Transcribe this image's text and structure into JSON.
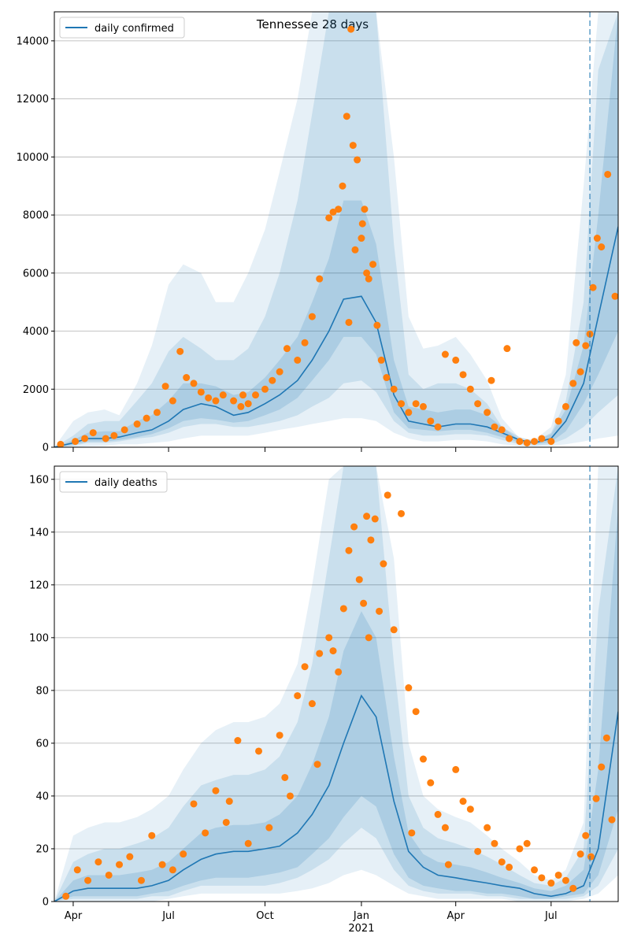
{
  "colors": {
    "line": "#1f77b4",
    "band": "#1f77b4",
    "points": "#ff7f0e",
    "grid": "#b0b0b0",
    "axis": "#000000"
  },
  "chart_data": [
    {
      "type": "line",
      "title": "Tennessee 28 days",
      "legend": "daily confirmed",
      "legend_position": "top-left",
      "grid": "horizontal",
      "ylim": [
        0,
        15000
      ],
      "yticks": [
        0,
        2000,
        4000,
        6000,
        8000,
        10000,
        12000,
        14000
      ],
      "xlim": [
        "2020-03-14",
        "2021-09-03"
      ],
      "forecast_start": "2021-08-07",
      "line_series": {
        "name": "daily confirmed",
        "x": [
          "2020-03-14",
          "2020-04-01",
          "2020-04-15",
          "2020-05-01",
          "2020-05-15",
          "2020-06-01",
          "2020-06-15",
          "2020-07-01",
          "2020-07-15",
          "2020-08-01",
          "2020-08-15",
          "2020-09-01",
          "2020-09-15",
          "2020-10-01",
          "2020-10-15",
          "2020-11-01",
          "2020-11-15",
          "2020-12-01",
          "2020-12-15",
          "2021-01-01",
          "2021-01-15",
          "2021-02-01",
          "2021-02-15",
          "2021-03-01",
          "2021-03-15",
          "2021-04-01",
          "2021-04-15",
          "2021-05-01",
          "2021-05-15",
          "2021-06-01",
          "2021-06-15",
          "2021-07-01",
          "2021-07-15",
          "2021-08-01",
          "2021-08-15",
          "2021-09-03"
        ],
        "values": [
          0,
          150,
          300,
          300,
          350,
          500,
          600,
          900,
          1300,
          1500,
          1400,
          1100,
          1200,
          1500,
          1800,
          2300,
          3000,
          4000,
          5100,
          5200,
          4300,
          1800,
          900,
          800,
          700,
          800,
          800,
          700,
          500,
          250,
          150,
          300,
          900,
          2200,
          4500,
          7600
        ]
      },
      "bands": [
        {
          "upper": [
            0,
            900,
            1200,
            1300,
            1100,
            2200,
            3500,
            5600,
            6300,
            6000,
            5000,
            5000,
            6000,
            7500,
            9500,
            12000,
            15000,
            15000,
            15000,
            15000,
            15000,
            10000,
            4500,
            3400,
            3500,
            3800,
            3200,
            2300,
            1000,
            300,
            250,
            700,
            2500,
            9000,
            15000,
            15000
          ],
          "lower": [
            0,
            10,
            30,
            50,
            100,
            100,
            150,
            200,
            300,
            400,
            400,
            400,
            400,
            500,
            600,
            700,
            800,
            900,
            1000,
            1000,
            900,
            500,
            300,
            200,
            200,
            250,
            250,
            200,
            100,
            40,
            30,
            50,
            100,
            200,
            300,
            400
          ]
        },
        {
          "upper": [
            0,
            400,
            800,
            900,
            900,
            1600,
            2200,
            3300,
            3800,
            3400,
            3000,
            3000,
            3400,
            4500,
            6000,
            8500,
            11500,
            15000,
            15000,
            15000,
            15000,
            7000,
            2500,
            2000,
            2200,
            2200,
            2000,
            1500,
            700,
            250,
            200,
            500,
            1600,
            5000,
            13000,
            15000
          ],
          "lower": [
            0,
            50,
            150,
            150,
            200,
            300,
            350,
            500,
            700,
            800,
            800,
            700,
            700,
            800,
            900,
            1100,
            1400,
            1700,
            2200,
            2300,
            1900,
            900,
            500,
            400,
            400,
            450,
            450,
            400,
            250,
            100,
            60,
            100,
            300,
            700,
            1200,
            1800
          ]
        },
        {
          "upper": [
            0,
            250,
            500,
            550,
            550,
            900,
            1100,
            1600,
            2200,
            2200,
            2100,
            1800,
            1900,
            2400,
            3000,
            3800,
            5000,
            6500,
            8500,
            8500,
            7000,
            3000,
            1400,
            1300,
            1200,
            1300,
            1300,
            1100,
            700,
            350,
            220,
            450,
            1300,
            3500,
            8000,
            15000
          ],
          "lower": [
            0,
            80,
            200,
            200,
            250,
            350,
            450,
            650,
            900,
            1000,
            950,
            850,
            900,
            1100,
            1300,
            1700,
            2300,
            3000,
            3800,
            3800,
            3200,
            1200,
            650,
            600,
            550,
            600,
            600,
            500,
            350,
            160,
            100,
            180,
            550,
            1500,
            2500,
            4000
          ]
        }
      ],
      "scatter_series": {
        "name": "observed",
        "x": [
          "2020-03-20",
          "2020-04-03",
          "2020-04-12",
          "2020-04-20",
          "2020-05-02",
          "2020-05-10",
          "2020-05-20",
          "2020-06-01",
          "2020-06-10",
          "2020-06-20",
          "2020-06-28",
          "2020-07-05",
          "2020-07-12",
          "2020-07-18",
          "2020-07-25",
          "2020-08-01",
          "2020-08-08",
          "2020-08-15",
          "2020-08-22",
          "2020-09-01",
          "2020-09-08",
          "2020-09-15",
          "2020-09-22",
          "2020-10-01",
          "2020-10-08",
          "2020-10-15",
          "2020-10-22",
          "2020-11-01",
          "2020-11-08",
          "2020-11-15",
          "2020-11-22",
          "2020-12-01",
          "2020-12-05",
          "2020-12-10",
          "2020-12-14",
          "2020-12-18",
          "2020-12-22",
          "2020-12-24",
          "2020-12-28",
          "2021-01-01",
          "2021-01-04",
          "2021-01-08",
          "2021-01-12",
          "2021-01-16",
          "2021-01-20",
          "2021-01-25",
          "2021-02-01",
          "2021-02-08",
          "2021-02-15",
          "2021-02-22",
          "2021-03-01",
          "2021-03-08",
          "2021-03-15",
          "2021-03-22",
          "2021-04-01",
          "2021-04-08",
          "2021-04-15",
          "2021-04-22",
          "2021-05-01",
          "2021-05-08",
          "2021-05-15",
          "2021-05-22",
          "2021-06-01",
          "2021-06-08",
          "2021-06-15",
          "2021-06-22",
          "2021-07-01",
          "2021-07-08",
          "2021-07-15",
          "2021-07-22",
          "2021-07-29",
          "2021-08-03",
          "2021-08-07",
          "2021-08-10",
          "2021-08-14",
          "2021-08-18",
          "2021-08-24",
          "2021-08-31",
          "2020-12-20",
          "2020-12-26",
          "2021-01-02",
          "2021-01-06",
          "2021-05-05",
          "2021-05-20",
          "2021-07-25",
          "2020-09-10"
        ],
        "values": [
          100,
          200,
          300,
          500,
          300,
          400,
          600,
          800,
          1000,
          1200,
          2100,
          1600,
          3300,
          2400,
          2200,
          1900,
          1700,
          1600,
          1800,
          1600,
          1400,
          1500,
          1800,
          2000,
          2300,
          2600,
          3400,
          3000,
          3600,
          4500,
          5800,
          7900,
          8100,
          8200,
          9000,
          11400,
          14400,
          10400,
          9900,
          7200,
          8200,
          5800,
          6300,
          4200,
          3000,
          2400,
          2000,
          1500,
          1200,
          1500,
          1400,
          900,
          700,
          3200,
          3000,
          2500,
          2000,
          1500,
          1200,
          700,
          600,
          300,
          200,
          150,
          200,
          300,
          200,
          900,
          1400,
          2200,
          2600,
          3500,
          3900,
          5500,
          7200,
          6900,
          9400,
          5200,
          4300,
          6800,
          7700,
          6000,
          2300,
          3400,
          3600,
          1800
        ],
        "also_zero_points": true
      }
    },
    {
      "type": "line",
      "legend": "daily deaths",
      "legend_position": "top-left",
      "grid": "horizontal",
      "ylim": [
        0,
        165
      ],
      "yticks": [
        0,
        20,
        40,
        60,
        80,
        100,
        120,
        140,
        160
      ],
      "xlim": [
        "2020-03-14",
        "2021-09-03"
      ],
      "xticks": [
        "Apr",
        "Jul",
        "Oct",
        "Jan",
        "Apr",
        "Jul"
      ],
      "xtick_dates": [
        "2020-04-01",
        "2020-07-01",
        "2020-10-01",
        "2021-01-01",
        "2021-04-01",
        "2021-07-01"
      ],
      "year_label": "2021",
      "forecast_start": "2021-08-07",
      "line_series": {
        "name": "daily deaths",
        "x": [
          "2020-03-14",
          "2020-04-01",
          "2020-04-15",
          "2020-05-01",
          "2020-05-15",
          "2020-06-01",
          "2020-06-15",
          "2020-07-01",
          "2020-07-15",
          "2020-08-01",
          "2020-08-15",
          "2020-09-01",
          "2020-09-15",
          "2020-10-01",
          "2020-10-15",
          "2020-11-01",
          "2020-11-15",
          "2020-12-01",
          "2020-12-15",
          "2021-01-01",
          "2021-01-15",
          "2021-02-01",
          "2021-02-15",
          "2021-03-01",
          "2021-03-15",
          "2021-04-01",
          "2021-04-15",
          "2021-05-01",
          "2021-05-15",
          "2021-06-01",
          "2021-06-15",
          "2021-07-01",
          "2021-07-15",
          "2021-08-01",
          "2021-08-15",
          "2021-09-03"
        ],
        "values": [
          0,
          4,
          5,
          5,
          5,
          5,
          6,
          8,
          12,
          16,
          18,
          19,
          19,
          20,
          21,
          26,
          33,
          44,
          60,
          78,
          70,
          38,
          19,
          13,
          10,
          9,
          8,
          7,
          6,
          5,
          3,
          2,
          3,
          6,
          20,
          72
        ]
      },
      "bands": [
        {
          "upper": [
            0,
            25,
            28,
            30,
            30,
            32,
            35,
            40,
            50,
            60,
            65,
            68,
            68,
            70,
            75,
            90,
            120,
            160,
            165,
            165,
            165,
            130,
            60,
            40,
            35,
            32,
            30,
            25,
            20,
            15,
            10,
            8,
            12,
            30,
            165,
            165
          ],
          "lower": [
            0,
            0,
            0,
            0,
            0,
            0,
            0,
            1,
            2,
            3,
            3,
            3,
            3,
            3,
            3,
            4,
            5,
            7,
            10,
            12,
            10,
            6,
            3,
            2,
            1,
            1,
            1,
            1,
            1,
            0,
            0,
            0,
            0,
            1,
            3,
            10
          ]
        },
        {
          "upper": [
            0,
            15,
            18,
            20,
            20,
            22,
            24,
            28,
            36,
            44,
            46,
            48,
            48,
            50,
            55,
            68,
            90,
            130,
            165,
            165,
            165,
            90,
            40,
            28,
            24,
            22,
            20,
            17,
            14,
            10,
            7,
            6,
            9,
            20,
            110,
            165
          ],
          "lower": [
            0,
            1,
            1,
            1,
            1,
            1,
            2,
            2,
            4,
            6,
            6,
            6,
            6,
            6,
            7,
            9,
            12,
            16,
            22,
            28,
            24,
            12,
            6,
            4,
            3,
            3,
            3,
            2,
            2,
            1,
            1,
            1,
            1,
            2,
            6,
            20
          ]
        },
        {
          "upper": [
            0,
            8,
            10,
            10,
            10,
            11,
            12,
            15,
            20,
            26,
            28,
            29,
            29,
            30,
            33,
            40,
            52,
            70,
            95,
            110,
            100,
            55,
            26,
            18,
            15,
            14,
            13,
            11,
            9,
            7,
            5,
            4,
            6,
            12,
            50,
            150
          ],
          "lower": [
            0,
            2,
            2,
            2,
            2,
            2,
            3,
            4,
            6,
            8,
            9,
            9,
            9,
            10,
            11,
            13,
            18,
            24,
            32,
            40,
            36,
            18,
            9,
            6,
            5,
            4,
            4,
            3,
            3,
            2,
            1,
            1,
            2,
            3,
            10,
            35
          ]
        }
      ],
      "scatter_series": {
        "name": "observed",
        "x": [
          "2020-03-25",
          "2020-04-05",
          "2020-04-15",
          "2020-04-25",
          "2020-05-05",
          "2020-05-15",
          "2020-05-25",
          "2020-06-05",
          "2020-06-15",
          "2020-06-25",
          "2020-07-05",
          "2020-07-15",
          "2020-07-25",
          "2020-08-05",
          "2020-08-15",
          "2020-08-25",
          "2020-09-05",
          "2020-09-15",
          "2020-09-25",
          "2020-10-05",
          "2020-10-15",
          "2020-10-25",
          "2020-11-01",
          "2020-11-08",
          "2020-11-15",
          "2020-11-22",
          "2020-12-01",
          "2020-12-05",
          "2020-12-10",
          "2020-12-15",
          "2020-12-20",
          "2020-12-25",
          "2020-12-30",
          "2021-01-03",
          "2021-01-06",
          "2021-01-10",
          "2021-01-14",
          "2021-01-18",
          "2021-01-22",
          "2021-01-26",
          "2021-02-01",
          "2021-02-08",
          "2021-02-15",
          "2021-02-22",
          "2021-03-01",
          "2021-03-08",
          "2021-03-15",
          "2021-03-22",
          "2021-04-01",
          "2021-04-08",
          "2021-04-15",
          "2021-04-22",
          "2021-05-01",
          "2021-05-08",
          "2021-05-15",
          "2021-05-22",
          "2021-06-01",
          "2021-06-08",
          "2021-06-15",
          "2021-06-22",
          "2021-07-01",
          "2021-07-08",
          "2021-07-15",
          "2021-07-22",
          "2021-07-29",
          "2021-08-03",
          "2021-08-08",
          "2021-08-13",
          "2021-08-18",
          "2021-08-23",
          "2021-08-28",
          "2020-08-28",
          "2020-10-20",
          "2020-11-20",
          "2021-01-08",
          "2021-02-18",
          "2021-03-25"
        ],
        "values": [
          2,
          12,
          8,
          15,
          10,
          14,
          17,
          8,
          25,
          14,
          12,
          18,
          37,
          26,
          42,
          30,
          61,
          22,
          57,
          28,
          63,
          40,
          78,
          89,
          75,
          94,
          100,
          95,
          87,
          111,
          133,
          142,
          122,
          113,
          146,
          137,
          145,
          110,
          128,
          154,
          103,
          147,
          81,
          72,
          54,
          45,
          33,
          28,
          50,
          38,
          35,
          19,
          28,
          22,
          15,
          13,
          20,
          22,
          12,
          9,
          7,
          10,
          8,
          5,
          18,
          25,
          17,
          39,
          51,
          62,
          31,
          38,
          47,
          52,
          100,
          26,
          14
        ]
      }
    }
  ]
}
